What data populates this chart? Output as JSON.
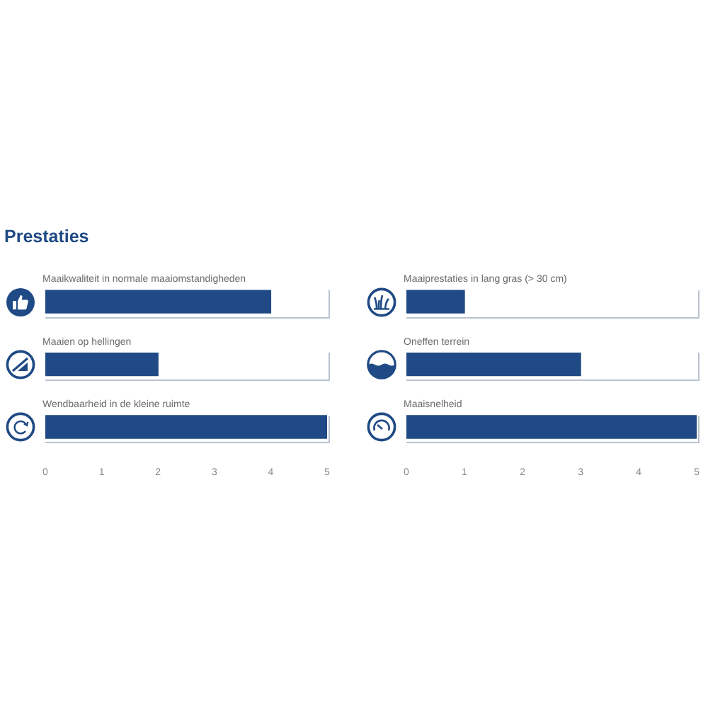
{
  "chart_data": [
    {
      "type": "bar",
      "title": "Prestaties",
      "orientation": "horizontal",
      "categories": [
        "Maaikwaliteit in normale maaiomstandigheden",
        "Maaien op hellingen",
        "Wendbaarheid in de kleine ruimte"
      ],
      "values": [
        4,
        2,
        5
      ],
      "color": "#1f4a85",
      "xlim": [
        0,
        5
      ],
      "xticks": [
        0,
        1,
        2,
        3,
        4,
        5
      ]
    },
    {
      "type": "bar",
      "orientation": "horizontal",
      "categories": [
        "Maaiprestaties in lang gras (> 30 cm)",
        "Oneffen terrein",
        "Maaisnelheid"
      ],
      "values": [
        1,
        3,
        5
      ],
      "color": "#1f4a85",
      "xlim": [
        0,
        5
      ],
      "xticks": [
        0,
        1,
        2,
        3,
        4,
        5
      ]
    }
  ]
}
